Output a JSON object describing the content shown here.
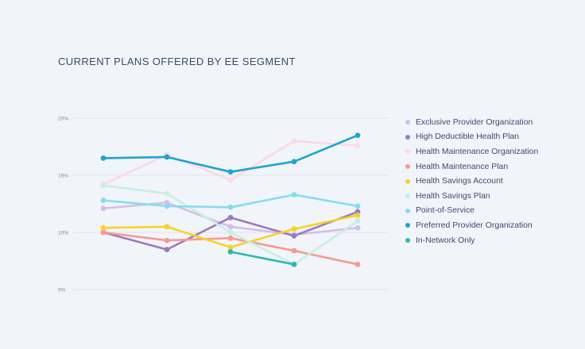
{
  "chart_data": {
    "type": "line",
    "title": "CURRENT PLANS OFFERED BY EE SEGMENT",
    "xlabel": "",
    "ylabel": "",
    "x": [
      1,
      2,
      3,
      4,
      5
    ],
    "ylim": [
      5,
      20
    ],
    "yticks": [
      "20%",
      "15%",
      "10%",
      "5%"
    ],
    "grid": true,
    "legend_position": "right",
    "series": [
      {
        "name": "Exclusive Provider Organization",
        "color": "#d4bde8",
        "values": [
          12.1,
          12.6,
          10.5,
          9.8,
          10.4
        ]
      },
      {
        "name": "High Deductible Health Plan",
        "color": "#9b7bb8",
        "values": [
          10.0,
          8.5,
          11.3,
          9.7,
          11.8
        ]
      },
      {
        "name": "Health Maintenance Organization",
        "color": "#fbd8e8",
        "values": [
          14.2,
          16.8,
          14.6,
          18.0,
          17.6
        ]
      },
      {
        "name": "Health Maintenance Plan",
        "color": "#f59a92",
        "values": [
          10.0,
          9.3,
          9.5,
          8.4,
          7.2
        ]
      },
      {
        "name": "Health Savings Account",
        "color": "#f5d327",
        "values": [
          10.4,
          10.5,
          8.7,
          10.3,
          11.5
        ]
      },
      {
        "name": "Health Savings Plan",
        "color": "#c8eee4",
        "values": [
          14.1,
          13.4,
          10.0,
          7.2,
          11.0
        ]
      },
      {
        "name": "Point-of-Service",
        "color": "#86dcef",
        "values": [
          12.8,
          12.3,
          12.2,
          13.3,
          12.3
        ]
      },
      {
        "name": "Preferred Provider Organization",
        "color": "#1ea5cf",
        "values": [
          16.5,
          16.6,
          15.3,
          16.2,
          18.5
        ]
      },
      {
        "name": "In-Network Only",
        "color": "#2fb8ab",
        "values": [
          null,
          null,
          8.3,
          7.2,
          null
        ]
      }
    ]
  }
}
